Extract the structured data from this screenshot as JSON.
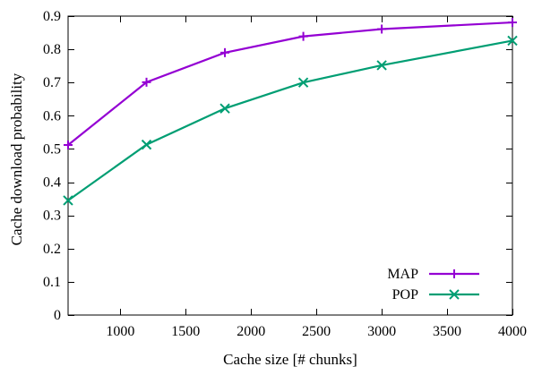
{
  "chart_data": {
    "type": "line",
    "title": "",
    "xlabel": "Cache size [# chunks]",
    "ylabel": "Cache download probability",
    "xlim": [
      600,
      4000
    ],
    "ylim": [
      0,
      0.9
    ],
    "x_ticks": [
      1000,
      1500,
      2000,
      2500,
      3000,
      3500,
      4000
    ],
    "y_ticks": [
      0,
      0.1,
      0.2,
      0.3,
      0.4,
      0.5,
      0.6,
      0.7,
      0.8,
      0.9
    ],
    "x_tick_labels": [
      "1000",
      "1500",
      "2000",
      "2500",
      "3000",
      "3500",
      "4000"
    ],
    "y_tick_labels": [
      "0",
      "0.1",
      "0.2",
      "0.3",
      "0.4",
      "0.5",
      "0.6",
      "0.7",
      "0.8",
      "0.9"
    ],
    "legend_position": "bottom-right",
    "grid": false,
    "x": [
      600,
      1200,
      1800,
      2400,
      3000,
      4000
    ],
    "series": [
      {
        "name": "MAP",
        "values": [
          0.512,
          0.701,
          0.79,
          0.839,
          0.861,
          0.881
        ],
        "color": "#9400d3",
        "marker": "plus"
      },
      {
        "name": "POP",
        "values": [
          0.345,
          0.513,
          0.622,
          0.7,
          0.752,
          0.826
        ],
        "color": "#009e73",
        "marker": "cross"
      }
    ]
  }
}
